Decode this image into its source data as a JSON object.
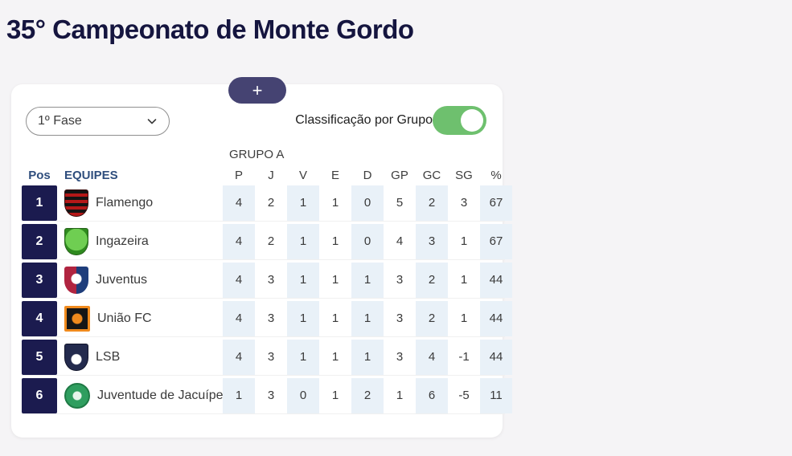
{
  "page": {
    "title": "35° Campeonato de Monte Gordo"
  },
  "colors": {
    "background": "#f5f4f6",
    "title_navy": "#15153f",
    "add_button": "#454372",
    "toggle_on_green": "#6ec06e",
    "header_navy": "#2f4e7d",
    "position_cell_navy": "#1b1b4f",
    "column_stripe_blue": "#e9f1f8"
  },
  "card": {
    "add_button_label": "+",
    "phase_select": {
      "value": "1º Fase"
    },
    "toggle": {
      "label": "Classificação por Grupo",
      "state": "on"
    },
    "group_label": "GRUPO A",
    "table": {
      "pos_header": "Pos",
      "team_header": "EQUIPES",
      "stat_headers": [
        "P",
        "J",
        "V",
        "E",
        "D",
        "GP",
        "GC",
        "SG",
        "%"
      ],
      "rows": [
        {
          "pos": "1",
          "team": "Flamengo",
          "crest": {
            "shape": "shield",
            "style": "stripes",
            "colors": [
              "#b51818",
              "#141414"
            ]
          },
          "stats": [
            "4",
            "2",
            "1",
            "1",
            "0",
            "5",
            "2",
            "3",
            "67"
          ]
        },
        {
          "pos": "2",
          "team": "Ingazeira",
          "crest": {
            "shape": "shield",
            "style": "radial",
            "colors": [
              "#6fce52",
              "#2f8a1f"
            ]
          },
          "stats": [
            "4",
            "2",
            "1",
            "1",
            "0",
            "4",
            "3",
            "1",
            "67"
          ]
        },
        {
          "pos": "3",
          "team": "Juventus",
          "crest": {
            "shape": "shield",
            "style": "split",
            "colors": [
              "#b02440",
              "#1e3d7b"
            ]
          },
          "stats": [
            "4",
            "3",
            "1",
            "1",
            "1",
            "3",
            "2",
            "1",
            "44"
          ]
        },
        {
          "pos": "4",
          "team": "União FC",
          "crest": {
            "shape": "square",
            "style": "framed",
            "colors": [
              "#f08a1d",
              "#161616"
            ]
          },
          "stats": [
            "4",
            "3",
            "1",
            "1",
            "1",
            "3",
            "2",
            "1",
            "44"
          ]
        },
        {
          "pos": "5",
          "team": "LSB",
          "crest": {
            "shape": "shield",
            "style": "emblem",
            "colors": [
              "#232a4d",
              "#ffffff"
            ]
          },
          "stats": [
            "4",
            "3",
            "1",
            "1",
            "1",
            "3",
            "4",
            "-1",
            "44"
          ]
        },
        {
          "pos": "6",
          "team": "Juventude de Jacuípe",
          "crest": {
            "shape": "circle",
            "style": "ring",
            "colors": [
              "#2f9e5f",
              "#e8f5ec"
            ]
          },
          "stats": [
            "1",
            "3",
            "0",
            "1",
            "2",
            "1",
            "6",
            "-5",
            "11"
          ]
        }
      ]
    }
  }
}
